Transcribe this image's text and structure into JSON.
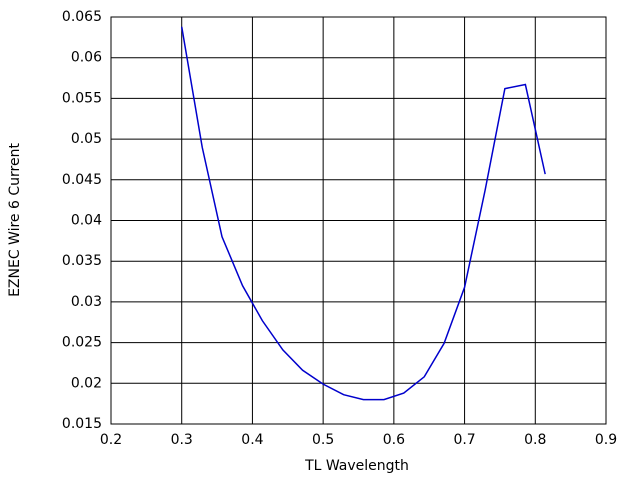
{
  "chart_data": {
    "type": "line",
    "x_label": "TL Wavelength",
    "y_label": "EZNEC Wire 6 Current",
    "x": [
      0.3,
      0.329,
      0.357,
      0.386,
      0.414,
      0.443,
      0.471,
      0.5,
      0.529,
      0.557,
      0.586,
      0.614,
      0.643,
      0.671,
      0.7,
      0.729,
      0.757,
      0.786,
      0.814
    ],
    "series": [
      {
        "color": "#0000cc",
        "values": [
          0.0638,
          0.049,
          0.038,
          0.032,
          0.0277,
          0.0241,
          0.0216,
          0.0199,
          0.0186,
          0.018,
          0.018,
          0.0188,
          0.0208,
          0.0249,
          0.0318,
          0.0437,
          0.0562,
          0.0567,
          0.0457
        ]
      }
    ],
    "xlim": [
      0.2,
      0.9
    ],
    "xticks": [
      0.2,
      0.3,
      0.4,
      0.5,
      0.6,
      0.7,
      0.8,
      0.9
    ],
    "ylim": [
      0.015,
      0.065
    ],
    "yticks": [
      0.015,
      0.02,
      0.025,
      0.03,
      0.035,
      0.04,
      0.045,
      0.05,
      0.055,
      0.06,
      0.065
    ],
    "grid": true
  }
}
